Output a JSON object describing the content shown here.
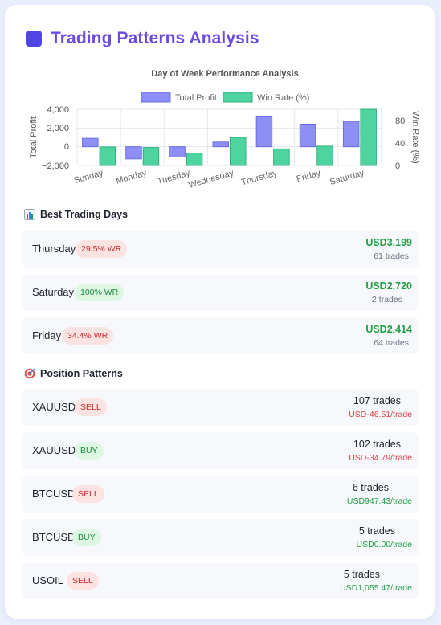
{
  "header": {
    "title": "Trading Patterns Analysis",
    "icon": "square-icon",
    "accent": "#6d4be0"
  },
  "chart_data": {
    "type": "bar",
    "title": "Day of Week Performance Analysis",
    "categories": [
      "Sunday",
      "Monday",
      "Tuesday",
      "Wednesday",
      "Thursday",
      "Friday",
      "Saturday"
    ],
    "series": [
      {
        "name": "Total Profit",
        "axis": "left",
        "color": "#7b7ef0",
        "values": [
          900,
          -1300,
          -1100,
          500,
          3199,
          2414,
          2720
        ]
      },
      {
        "name": "Win Rate (%)",
        "axis": "right",
        "color": "#3ecb93",
        "values": [
          33,
          32,
          22,
          50,
          29.5,
          34.4,
          100
        ]
      }
    ],
    "ylabel": "Total Profit",
    "ylim": [
      -2000,
      4000
    ],
    "yticks": [
      "4,000",
      "2,000",
      "0",
      "−2,000"
    ],
    "y2label": "Win Rate (%)",
    "y2lim": [
      0,
      100
    ],
    "y2ticks": [
      "80",
      "40",
      "0"
    ],
    "legend": "top",
    "grid": true
  },
  "best_days": {
    "title": "Best Trading Days",
    "icon": "bar-chart-icon",
    "items": [
      {
        "day": "Thursday",
        "wr": "29.5% WR",
        "tone": "red",
        "profit": "USD3,199",
        "trades": "61 trades"
      },
      {
        "day": "Saturday",
        "wr": "100% WR",
        "tone": "green",
        "profit": "USD2,720",
        "trades": "2 trades"
      },
      {
        "day": "Friday",
        "wr": "34.4% WR",
        "tone": "red",
        "profit": "USD2,414",
        "trades": "64 trades"
      }
    ]
  },
  "positions": {
    "title": "Position Patterns",
    "icon": "target-icon",
    "items": [
      {
        "symbol": "XAUUSD",
        "side": "SELL",
        "tone": "red",
        "trades": "107 trades",
        "per_trade": "USD-46.51/trade",
        "pt_tone": "red"
      },
      {
        "symbol": "XAUUSD",
        "side": "BUY",
        "tone": "green",
        "trades": "102 trades",
        "per_trade": "USD-34.79/trade",
        "pt_tone": "red"
      },
      {
        "symbol": "BTCUSD",
        "side": "SELL",
        "tone": "red",
        "trades": "6 trades",
        "per_trade": "USD947.43/trade",
        "pt_tone": "green"
      },
      {
        "symbol": "BTCUSD",
        "side": "BUY",
        "tone": "green",
        "trades": "5 trades",
        "per_trade": "USD0.00/trade",
        "pt_tone": "green"
      },
      {
        "symbol": "USOIL",
        "side": "SELL",
        "tone": "red",
        "trades": "5 trades",
        "per_trade": "USD1,055.47/trade",
        "pt_tone": "green"
      }
    ]
  }
}
